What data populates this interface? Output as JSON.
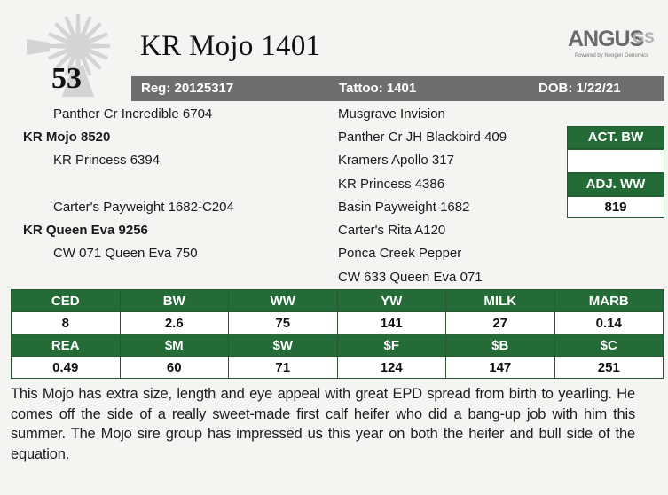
{
  "lot_number": "53",
  "title": "KR Mojo 1401",
  "logo": {
    "main": "ANGUS",
    "suffix": "GS",
    "tagline": "Powered by Neogen Genomics"
  },
  "header_bar": {
    "registration": "Reg: 20125317",
    "tattoo": "Tattoo: 1401",
    "dob": "DOB: 1/22/21"
  },
  "pedigree": {
    "sire_sire": "Panther Cr Incredible 6704",
    "sire": "KR Mojo 8520",
    "sire_dam": "KR Princess 6394",
    "dam_sire": "Carter's Payweight 1682-C204",
    "dam": "KR Queen Eva 9256",
    "dam_dam": "CW 071 Queen Eva 750",
    "ggp": [
      "Musgrave Invision",
      "Panther Cr JH Blackbird 409",
      "Kramers Apollo 317",
      "KR Princess 4386",
      "Basin Payweight 1682",
      "Carter's Rita A120",
      "Ponca Creek Pepper",
      "CW 633 Queen Eva 071"
    ]
  },
  "side_boxes": {
    "act_bw_label": "ACT. BW",
    "act_bw_value": "",
    "adj_ww_label": "ADJ. WW",
    "adj_ww_value": "819"
  },
  "epd_table": {
    "row1_headers": [
      "CED",
      "BW",
      "WW",
      "YW",
      "MILK",
      "MARB"
    ],
    "row1_values": [
      "8",
      "2.6",
      "75",
      "141",
      "27",
      "0.14"
    ],
    "row2_headers": [
      "REA",
      "$M",
      "$W",
      "$F",
      "$B",
      "$C"
    ],
    "row2_values": [
      "0.49",
      "60",
      "71",
      "124",
      "147",
      "251"
    ]
  },
  "description": "This Mojo has extra size, length and eye appeal with great EPD spread from birth to yearling. He comes off the side of a really sweet-made first calf heifer who did a bang-up job with him this summer. The Mojo sire group has impressed us this year on both the heifer and bull side of the equation."
}
